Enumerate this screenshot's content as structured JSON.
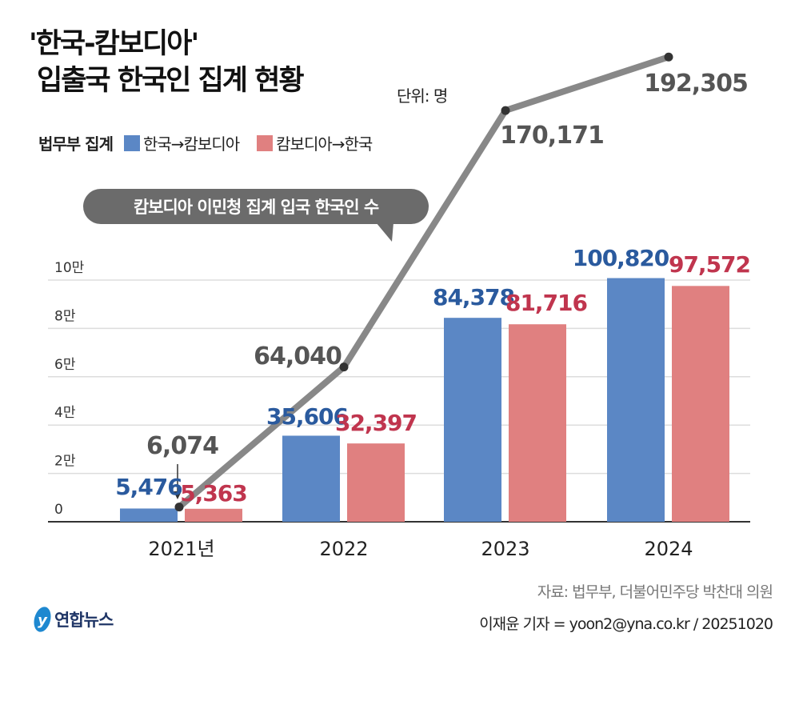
{
  "header": {
    "title_line1": "'한국-캄보디아'",
    "title_line2": "입출국 한국인 집계 현황",
    "unit": "단위: 명"
  },
  "legend": {
    "group_label": "법무부 집계",
    "items": [
      {
        "label": "한국→캄보디아",
        "color": "#5b87c5"
      },
      {
        "label": "캄보디아→한국",
        "color": "#e08080"
      }
    ]
  },
  "callout": {
    "text": "캄보디아 이민청 집계 입국 한국인 수"
  },
  "footer": {
    "source": "자료: 법무부, 더불어민주당 박찬대 의원",
    "credit": "이재윤 기자 = yoon2@yna.co.kr / 20251020",
    "logo": "연합뉴스"
  },
  "chart_data": {
    "type": "bar",
    "categories": [
      "2021년",
      "2022",
      "2023",
      "2024"
    ],
    "series": [
      {
        "name": "한국→캄보디아",
        "type": "bar",
        "values": [
          5476,
          35606,
          84378,
          100820
        ],
        "labels": [
          "5,476",
          "35,606",
          "84,378",
          "100,820"
        ],
        "color": "#5b87c5",
        "label_color": "#2a5a9e"
      },
      {
        "name": "캄보디아→한국",
        "type": "bar",
        "values": [
          5363,
          32397,
          81716,
          97572
        ],
        "labels": [
          "5,363",
          "32,397",
          "81,716",
          "97,572"
        ],
        "color": "#e08080",
        "label_color": "#c0354e"
      },
      {
        "name": "캄보디아 이민청 집계 입국 한국인 수",
        "type": "line",
        "values": [
          6074,
          64040,
          170171,
          192305
        ],
        "labels": [
          "6,074",
          "64,040",
          "170,171",
          "192,305"
        ],
        "color": "#888888",
        "label_color": "#555555"
      }
    ],
    "yticks": [
      {
        "value": 0,
        "label": "0"
      },
      {
        "value": 20000,
        "label": "2만"
      },
      {
        "value": 40000,
        "label": "4만"
      },
      {
        "value": 60000,
        "label": "6만"
      },
      {
        "value": 80000,
        "label": "8만"
      },
      {
        "value": 100000,
        "label": "10만"
      }
    ],
    "grid": true
  }
}
